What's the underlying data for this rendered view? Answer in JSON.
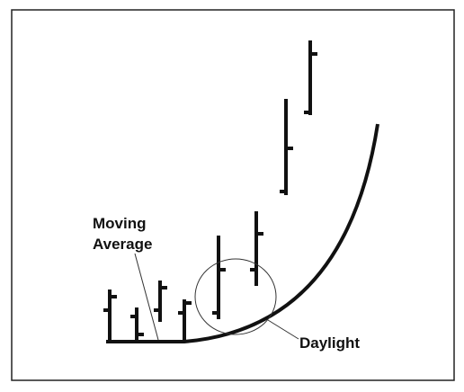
{
  "labels": {
    "moving_average": [
      "Moving",
      "Average"
    ],
    "daylight": "Daylight"
  }
}
